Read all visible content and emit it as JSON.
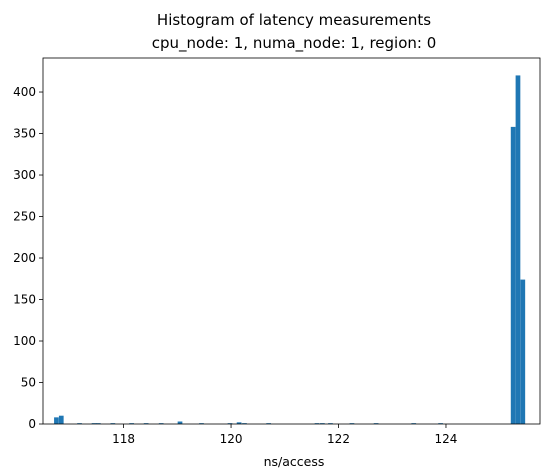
{
  "chart_data": {
    "type": "bar",
    "title_line1": "Histogram of latency measurements",
    "title_line2": "cpu_node: 1, numa_node: 1, region: 0",
    "xlabel": "ns/access",
    "ylabel": "",
    "xlim": [
      116.5,
      125.75
    ],
    "ylim": [
      0,
      441
    ],
    "xticks": [
      118,
      120,
      122,
      124
    ],
    "yticks": [
      0,
      50,
      100,
      150,
      200,
      250,
      300,
      350,
      400
    ],
    "bin_width": 0.0876,
    "bar_color": "#1f77b4",
    "bins": [
      {
        "x": 116.75,
        "count": 8
      },
      {
        "x": 116.84,
        "count": 10
      },
      {
        "x": 117.18,
        "count": 1
      },
      {
        "x": 117.45,
        "count": 1
      },
      {
        "x": 117.53,
        "count": 1
      },
      {
        "x": 117.8,
        "count": 1
      },
      {
        "x": 118.15,
        "count": 1
      },
      {
        "x": 118.42,
        "count": 1
      },
      {
        "x": 118.7,
        "count": 1
      },
      {
        "x": 119.05,
        "count": 3
      },
      {
        "x": 119.45,
        "count": 1
      },
      {
        "x": 119.98,
        "count": 1
      },
      {
        "x": 120.15,
        "count": 2
      },
      {
        "x": 120.25,
        "count": 1
      },
      {
        "x": 120.7,
        "count": 1
      },
      {
        "x": 121.6,
        "count": 1
      },
      {
        "x": 121.7,
        "count": 1
      },
      {
        "x": 121.85,
        "count": 1
      },
      {
        "x": 122.25,
        "count": 1
      },
      {
        "x": 122.7,
        "count": 1
      },
      {
        "x": 123.4,
        "count": 1
      },
      {
        "x": 123.9,
        "count": 1
      },
      {
        "x": 125.25,
        "count": 358
      },
      {
        "x": 125.34,
        "count": 420
      },
      {
        "x": 125.43,
        "count": 174
      }
    ]
  }
}
